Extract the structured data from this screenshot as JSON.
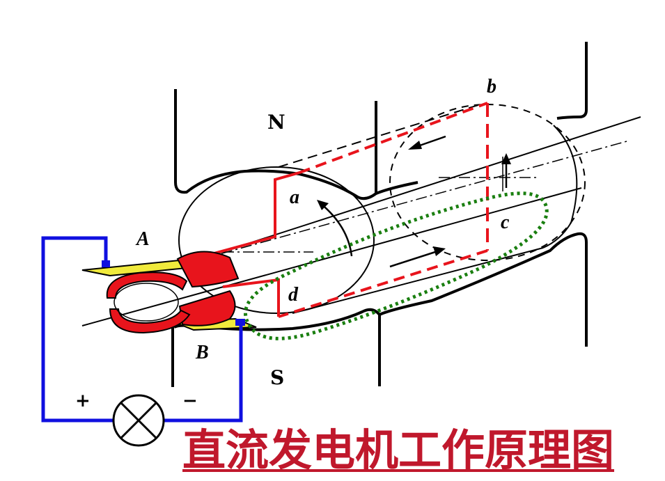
{
  "labels": {
    "north": "N",
    "south": "S",
    "brush_a": "A",
    "brush_b": "B",
    "coil_a": "a",
    "coil_b": "b",
    "coil_c": "c",
    "coil_d": "d",
    "plus": "+",
    "minus": "−"
  },
  "caption": "直流发电机工作原理图",
  "colors": {
    "coil": "#e8141c",
    "circuit": "#1010e0",
    "brush": "#f0ea3c",
    "highlight": "#1a7f10",
    "caption": "#c0182c"
  }
}
